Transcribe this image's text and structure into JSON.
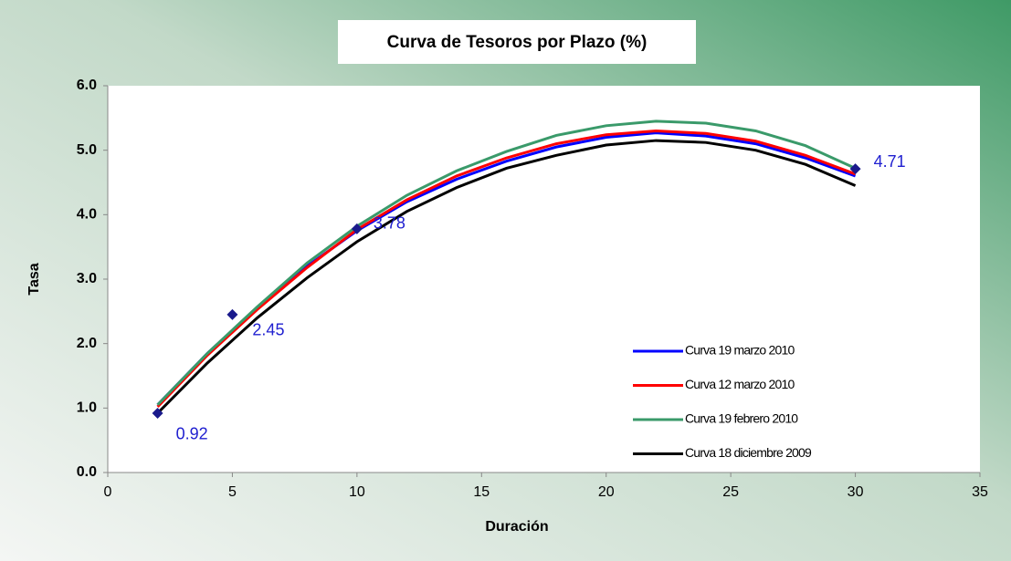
{
  "chart_data": {
    "type": "line",
    "title": "Curva de Tesoros por Plazo (%)",
    "x_label": "Duración",
    "y_label": "Tasa",
    "x": [
      2,
      4,
      6,
      8,
      10,
      12,
      14,
      16,
      18,
      20,
      22,
      24,
      26,
      28,
      30
    ],
    "series": [
      {
        "name": "Curva 19 marzo 2010",
        "color": "#0000ff",
        "values": [
          1.05,
          1.85,
          2.55,
          3.2,
          3.75,
          4.2,
          4.55,
          4.83,
          5.05,
          5.2,
          5.27,
          5.22,
          5.1,
          4.88,
          4.6
        ]
      },
      {
        "name": "Curva 12 marzo 2010",
        "color": "#ff0000",
        "values": [
          1.02,
          1.82,
          2.53,
          3.18,
          3.77,
          4.23,
          4.6,
          4.88,
          5.1,
          5.24,
          5.3,
          5.26,
          5.14,
          4.92,
          4.63
        ]
      },
      {
        "name": "Curva 19 febrero 2010",
        "color": "#3a9a6a",
        "values": [
          1.05,
          1.85,
          2.57,
          3.25,
          3.82,
          4.3,
          4.68,
          4.98,
          5.23,
          5.38,
          5.45,
          5.42,
          5.3,
          5.07,
          4.72
        ]
      },
      {
        "name": "Curva 18 diciembre 2009",
        "color": "#000000",
        "values": [
          0.92,
          1.7,
          2.4,
          3.02,
          3.58,
          4.05,
          4.42,
          4.72,
          4.92,
          5.08,
          5.15,
          5.12,
          5.0,
          4.78,
          4.45
        ]
      }
    ],
    "points": {
      "color": "#1a1a8c",
      "label_color": "#2020d0",
      "x": [
        2,
        5,
        10,
        30
      ],
      "values": [
        0.92,
        2.45,
        3.78,
        4.71
      ],
      "value_labels": [
        "0.92",
        "2.45",
        "3.78",
        "4.71"
      ]
    },
    "xlim": [
      0,
      35
    ],
    "xticks": [
      0,
      5,
      10,
      15,
      20,
      25,
      30,
      35
    ],
    "ylim": [
      0,
      6
    ],
    "yticks": [
      {
        "value": 0,
        "label": "0.0"
      },
      {
        "value": 1,
        "label": "1.0"
      },
      {
        "value": 2,
        "label": "2.0"
      },
      {
        "value": 3,
        "label": "3.0"
      },
      {
        "value": 4,
        "label": "4.0"
      },
      {
        "value": 5,
        "label": "5.0"
      },
      {
        "value": 6,
        "label": "6.0"
      }
    ],
    "grid": false,
    "legend": "lower right"
  }
}
